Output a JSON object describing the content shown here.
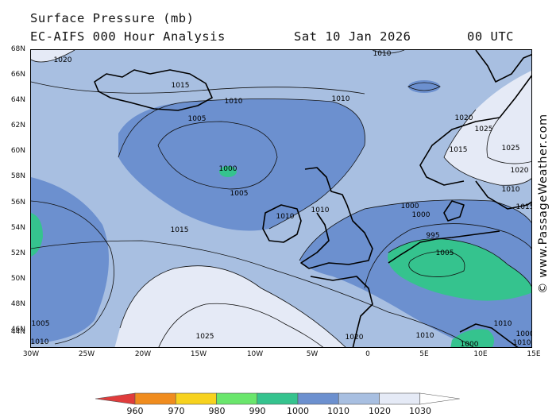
{
  "header": {
    "line1": "Surface Pressure (mb)",
    "line2": "EC-AIFS 000 Hour Analysis",
    "date": "Sat 10 Jan 2026",
    "time": "00 UTC"
  },
  "credit": "© www.PassageWeather.com",
  "map": {
    "lat_labels": [
      "68N",
      "66N",
      "64N",
      "62N",
      "60N",
      "58N",
      "56N",
      "54N",
      "52N",
      "50N",
      "48N",
      "46N",
      "44N"
    ],
    "lon_labels": [
      "30W",
      "25W",
      "20W",
      "15W",
      "10W",
      "5W",
      "0",
      "5E",
      "10E",
      "15E"
    ],
    "contour_labels": [
      "1020",
      "1015",
      "1010",
      "1010",
      "1010",
      "1005",
      "1000",
      "1005",
      "1010",
      "1010",
      "1015",
      "1005",
      "1010",
      "1025",
      "1020",
      "1025",
      "1020",
      "1015",
      "1010",
      "1000",
      "995",
      "1005",
      "1000",
      "1010",
      "1020",
      "1025",
      "1015",
      "1010",
      "1000",
      "1000",
      "1010",
      "1020",
      "1000"
    ],
    "fill_colors": {
      "band_990_1000": "#35c38e",
      "band_1000_1010": "#6c90cf",
      "band_1010_1020": "#a8bfe1",
      "band_1020_1030": "#e5eaf6"
    }
  },
  "legend": {
    "ticks": [
      "960",
      "970",
      "980",
      "990",
      "1000",
      "1010",
      "1020",
      "1030"
    ],
    "colors": [
      "#e03c3c",
      "#f08c1e",
      "#f7d21e",
      "#6ae66c",
      "#35c38e",
      "#6c90cf",
      "#a8bfe1",
      "#e5eaf6",
      "#ffffff"
    ]
  }
}
